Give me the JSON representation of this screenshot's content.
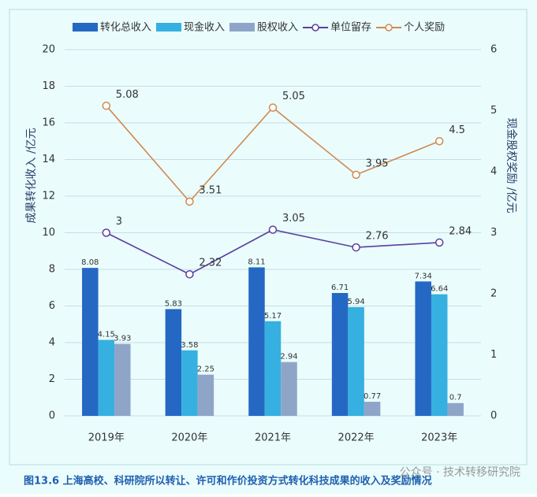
{
  "chart_data": {
    "type": "bar_line",
    "categories": [
      "2019年",
      "2020年",
      "2021年",
      "2022年",
      "2023年"
    ],
    "y_label": "成果转化收入 /亿元",
    "y2_label": "现金股权奖励 /亿元",
    "ylim": [
      0,
      20
    ],
    "yticks": [
      0,
      2,
      4,
      6,
      8,
      10,
      12,
      14,
      16,
      18,
      20
    ],
    "y2lim": [
      0,
      6
    ],
    "y2ticks": [
      0,
      1,
      2,
      3,
      4,
      5,
      6
    ],
    "grid": true,
    "series": [
      {
        "name": "转化总收入",
        "type": "bar",
        "color": "#2468c4",
        "values": [
          8.08,
          5.83,
          8.11,
          6.71,
          7.34
        ]
      },
      {
        "name": "现金收入",
        "type": "bar",
        "color": "#36b0e0",
        "values": [
          4.15,
          3.58,
          5.17,
          5.94,
          6.64
        ]
      },
      {
        "name": "股权收入",
        "type": "bar",
        "color": "#8fa5c8",
        "values": [
          3.93,
          2.25,
          2.94,
          0.77,
          0.7
        ]
      },
      {
        "name": "单位留存",
        "type": "line",
        "axis": "y2",
        "color": "#5a3fa0",
        "values": [
          3,
          2.32,
          3.05,
          2.76,
          2.84
        ]
      },
      {
        "name": "个人奖励",
        "type": "line",
        "axis": "y2",
        "color": "#d08a50",
        "values": [
          5.08,
          3.51,
          5.05,
          3.95,
          4.5
        ]
      }
    ],
    "caption": "图13.6   上海高校、科研院所以转让、许可和作价投资方式转化科技成果的收入及奖励情况",
    "watermark": "公众号 · 技术转移研究院"
  }
}
